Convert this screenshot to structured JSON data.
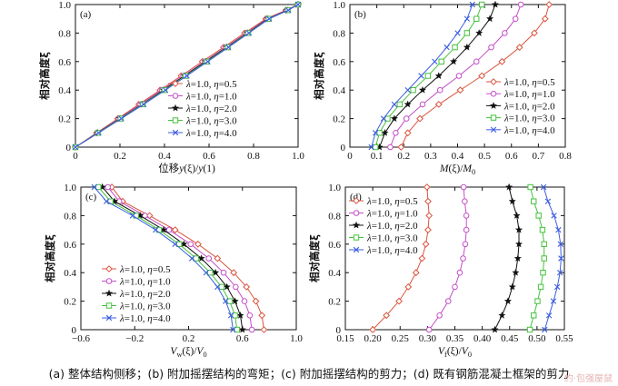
{
  "caption": "(a) 整体结构侧移；(b) 附加摇摆结构的弯矩；(c) 附加摇摆结构的剪力；(d) 既有钢筋混凝土框架的剪力",
  "watermark": "约·包强屋鼠",
  "chart_data": [
    {
      "id": "a",
      "type": "line",
      "panel_label": "(a)",
      "xlabel": "位移y(ξ)/y(1)",
      "ylabel": "相对高度ξ",
      "xlim": [
        0,
        1.0
      ],
      "ylim": [
        0,
        1.0
      ],
      "xticks": [
        "0",
        "0.2",
        "0.4",
        "0.6",
        "0.8",
        "1.0"
      ],
      "yticks": [
        "0",
        "0.2",
        "0.4",
        "0.6",
        "0.8",
        "1.0"
      ],
      "legend_position": "right",
      "series": [
        {
          "name": "λ=1.0, η=0.5",
          "color": "#d9543f",
          "marker": "diamond",
          "x": [
            0,
            0.095,
            0.19,
            0.285,
            0.38,
            0.475,
            0.57,
            0.665,
            0.76,
            0.855,
            0.945,
            1.0
          ],
          "y": [
            0,
            0.1,
            0.2,
            0.3,
            0.4,
            0.5,
            0.6,
            0.7,
            0.8,
            0.9,
            0.96,
            1.0
          ]
        },
        {
          "name": "λ=1.0, η=1.0",
          "color": "#c44fc8",
          "marker": "circle",
          "x": [
            0,
            0.098,
            0.195,
            0.292,
            0.388,
            0.484,
            0.58,
            0.674,
            0.768,
            0.86,
            0.948,
            1.0
          ],
          "y": [
            0,
            0.1,
            0.2,
            0.3,
            0.4,
            0.5,
            0.6,
            0.7,
            0.8,
            0.9,
            0.96,
            1.0
          ]
        },
        {
          "name": "λ=1.0, η=2.0",
          "color": "#111111",
          "marker": "star",
          "x": [
            0,
            0.1,
            0.2,
            0.3,
            0.395,
            0.49,
            0.585,
            0.68,
            0.773,
            0.865,
            0.952,
            1.0
          ],
          "y": [
            0,
            0.1,
            0.2,
            0.3,
            0.4,
            0.5,
            0.6,
            0.7,
            0.8,
            0.9,
            0.96,
            1.0
          ]
        },
        {
          "name": "λ=1.0, η=3.0",
          "color": "#44c23b",
          "marker": "square",
          "x": [
            0,
            0.102,
            0.203,
            0.303,
            0.4,
            0.495,
            0.59,
            0.684,
            0.776,
            0.868,
            0.954,
            1.0
          ],
          "y": [
            0,
            0.1,
            0.2,
            0.3,
            0.4,
            0.5,
            0.6,
            0.7,
            0.8,
            0.9,
            0.96,
            1.0
          ]
        },
        {
          "name": "λ=1.0, η=4.0",
          "color": "#3d5ee0",
          "marker": "x",
          "x": [
            0,
            0.104,
            0.206,
            0.306,
            0.404,
            0.5,
            0.594,
            0.687,
            0.779,
            0.87,
            0.956,
            1.0
          ],
          "y": [
            0,
            0.1,
            0.2,
            0.3,
            0.4,
            0.5,
            0.6,
            0.7,
            0.8,
            0.9,
            0.96,
            1.0
          ]
        }
      ]
    },
    {
      "id": "b",
      "type": "line",
      "panel_label": "(b)",
      "xlabel": "M(ξ)/M0",
      "ylabel": "相对高度ξ",
      "xlim": [
        0,
        0.8
      ],
      "ylim": [
        0,
        1.0
      ],
      "xticks": [
        "0",
        "0.1",
        "0.2",
        "0.3",
        "0.4",
        "0.5",
        "0.6",
        "0.7",
        "0.8"
      ],
      "yticks": [
        "0",
        "0.2",
        "0.4",
        "0.6",
        "0.8",
        "1.0"
      ],
      "legend_position": "right",
      "series": [
        {
          "name": "λ=1.0, η=0.5",
          "color": "#d9543f",
          "marker": "diamond",
          "x": [
            0.19,
            0.215,
            0.26,
            0.33,
            0.41,
            0.49,
            0.565,
            0.63,
            0.685,
            0.725,
            0.74
          ],
          "y": [
            0,
            0.1,
            0.2,
            0.3,
            0.4,
            0.5,
            0.6,
            0.7,
            0.8,
            0.9,
            1.0
          ]
        },
        {
          "name": "λ=1.0, η=1.0",
          "color": "#c44fc8",
          "marker": "circle",
          "x": [
            0.15,
            0.17,
            0.21,
            0.27,
            0.335,
            0.405,
            0.47,
            0.525,
            0.575,
            0.615,
            0.635
          ],
          "y": [
            0,
            0.1,
            0.2,
            0.3,
            0.4,
            0.5,
            0.6,
            0.7,
            0.8,
            0.9,
            1.0
          ]
        },
        {
          "name": "λ=1.0, η=2.0",
          "color": "#111111",
          "marker": "star",
          "x": [
            0.11,
            0.13,
            0.165,
            0.215,
            0.27,
            0.33,
            0.385,
            0.435,
            0.48,
            0.52,
            0.54
          ],
          "y": [
            0,
            0.1,
            0.2,
            0.3,
            0.4,
            0.5,
            0.6,
            0.7,
            0.8,
            0.9,
            1.0
          ]
        },
        {
          "name": "λ=1.0, η=3.0",
          "color": "#44c23b",
          "marker": "square",
          "x": [
            0.095,
            0.11,
            0.14,
            0.185,
            0.235,
            0.29,
            0.34,
            0.39,
            0.435,
            0.47,
            0.49
          ],
          "y": [
            0,
            0.1,
            0.2,
            0.3,
            0.4,
            0.5,
            0.6,
            0.7,
            0.8,
            0.9,
            1.0
          ]
        },
        {
          "name": "λ=1.0, η=4.0",
          "color": "#3d5ee0",
          "marker": "x",
          "x": [
            0.08,
            0.095,
            0.125,
            0.165,
            0.215,
            0.265,
            0.315,
            0.36,
            0.4,
            0.435,
            0.455
          ],
          "y": [
            0,
            0.1,
            0.2,
            0.3,
            0.4,
            0.5,
            0.6,
            0.7,
            0.8,
            0.9,
            1.0
          ]
        }
      ]
    },
    {
      "id": "c",
      "type": "line",
      "panel_label": "(c)",
      "xlabel": "Vw(ξ)/V0",
      "ylabel": "相对高度ξ",
      "xlim": [
        -0.6,
        1.0
      ],
      "ylim": [
        0,
        1.0
      ],
      "xticks": [
        "−0.6",
        "−0.2",
        "0.2",
        "0.6",
        "1.0"
      ],
      "xtick_values": [
        -0.6,
        -0.2,
        0.2,
        0.6,
        1.0
      ],
      "yticks": [
        "0",
        "0.2",
        "0.4",
        "0.6",
        "0.8",
        "1.0"
      ],
      "legend_position": "lower-left",
      "series": [
        {
          "name": "λ=1.0, η=0.5",
          "color": "#d9543f",
          "marker": "diamond",
          "x": [
            0.76,
            0.745,
            0.7,
            0.63,
            0.535,
            0.415,
            0.27,
            0.1,
            -0.09,
            -0.29,
            -0.37
          ],
          "y": [
            0,
            0.1,
            0.2,
            0.3,
            0.4,
            0.5,
            0.6,
            0.7,
            0.8,
            0.9,
            1.0
          ]
        },
        {
          "name": "λ=1.0, η=1.0",
          "color": "#c44fc8",
          "marker": "circle",
          "x": [
            0.67,
            0.655,
            0.615,
            0.55,
            0.46,
            0.35,
            0.215,
            0.055,
            -0.125,
            -0.315,
            -0.4
          ],
          "y": [
            0,
            0.1,
            0.2,
            0.3,
            0.4,
            0.5,
            0.6,
            0.7,
            0.8,
            0.9,
            1.0
          ]
        },
        {
          "name": "λ=1.0, η=2.0",
          "color": "#111111",
          "marker": "star",
          "x": [
            0.6,
            0.585,
            0.545,
            0.485,
            0.4,
            0.295,
            0.165,
            0.015,
            -0.16,
            -0.35,
            -0.44
          ],
          "y": [
            0,
            0.1,
            0.2,
            0.3,
            0.4,
            0.5,
            0.6,
            0.7,
            0.8,
            0.9,
            1.0
          ]
        },
        {
          "name": "λ=1.0, η=3.0",
          "color": "#44c23b",
          "marker": "square",
          "x": [
            0.56,
            0.545,
            0.505,
            0.445,
            0.36,
            0.255,
            0.13,
            -0.02,
            -0.19,
            -0.38,
            -0.47
          ],
          "y": [
            0,
            0.1,
            0.2,
            0.3,
            0.4,
            0.5,
            0.6,
            0.7,
            0.8,
            0.9,
            1.0
          ]
        },
        {
          "name": "λ=1.0, η=4.0",
          "color": "#3d5ee0",
          "marker": "x",
          "x": [
            0.53,
            0.515,
            0.475,
            0.415,
            0.33,
            0.225,
            0.1,
            -0.045,
            -0.215,
            -0.41,
            -0.5
          ],
          "y": [
            0,
            0.1,
            0.2,
            0.3,
            0.4,
            0.5,
            0.6,
            0.7,
            0.8,
            0.9,
            1.0
          ]
        }
      ]
    },
    {
      "id": "d",
      "type": "line",
      "panel_label": "(d)",
      "xlabel": "Vf(ξ)/V0",
      "ylabel": "相对高度ξ",
      "xlim": [
        0.15,
        0.55
      ],
      "ylim": [
        0,
        1.0
      ],
      "xticks": [
        "0.15",
        "0.20",
        "0.25",
        "0.30",
        "0.35",
        "0.40",
        "0.45",
        "0.50",
        "0.55"
      ],
      "yticks": [
        "0",
        "0.2",
        "0.4",
        "0.6",
        "0.8",
        "1.0"
      ],
      "legend_position": "top-left",
      "series": [
        {
          "name": "λ=1.0, η=0.5",
          "color": "#d9543f",
          "marker": "diamond",
          "x": [
            0.2,
            0.225,
            0.248,
            0.265,
            0.279,
            0.29,
            0.297,
            0.301,
            0.303,
            0.301,
            0.299
          ],
          "y": [
            0,
            0.1,
            0.2,
            0.3,
            0.4,
            0.5,
            0.6,
            0.7,
            0.8,
            0.9,
            1.0
          ]
        },
        {
          "name": "λ=1.0, η=1.0",
          "color": "#c44fc8",
          "marker": "circle",
          "x": [
            0.303,
            0.322,
            0.338,
            0.35,
            0.359,
            0.365,
            0.369,
            0.371,
            0.371,
            0.368,
            0.366
          ],
          "y": [
            0,
            0.1,
            0.2,
            0.3,
            0.4,
            0.5,
            0.6,
            0.7,
            0.8,
            0.9,
            1.0
          ]
        },
        {
          "name": "λ=1.0, η=2.0",
          "color": "#111111",
          "marker": "star",
          "x": [
            0.423,
            0.436,
            0.447,
            0.455,
            0.461,
            0.465,
            0.467,
            0.467,
            0.463,
            0.455,
            0.449
          ],
          "y": [
            0,
            0.1,
            0.2,
            0.3,
            0.4,
            0.5,
            0.6,
            0.7,
            0.8,
            0.9,
            1.0
          ]
        },
        {
          "name": "λ=1.0, η=3.0",
          "color": "#44c23b",
          "marker": "square",
          "x": [
            0.487,
            0.494,
            0.501,
            0.507,
            0.511,
            0.513,
            0.513,
            0.51,
            0.503,
            0.494,
            0.488
          ],
          "y": [
            0,
            0.1,
            0.2,
            0.3,
            0.4,
            0.5,
            0.6,
            0.7,
            0.8,
            0.9,
            1.0
          ]
        },
        {
          "name": "λ=1.0, η=4.0",
          "color": "#3d5ee0",
          "marker": "x",
          "x": [
            0.514,
            0.522,
            0.53,
            0.537,
            0.542,
            0.544,
            0.543,
            0.539,
            0.531,
            0.52,
            0.512
          ],
          "y": [
            0,
            0.1,
            0.2,
            0.3,
            0.4,
            0.5,
            0.6,
            0.7,
            0.8,
            0.9,
            1.0
          ]
        }
      ]
    }
  ]
}
